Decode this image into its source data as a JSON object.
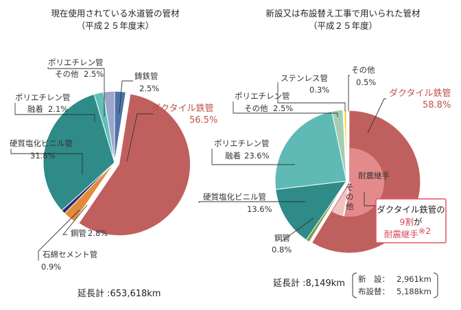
{
  "chart_data": [
    {
      "type": "pie",
      "title": "現在使用されている水道管の管材",
      "subtitle": "（平成２５年度末）",
      "total_label": "延長計 :653,618km",
      "slices": [
        {
          "name_lines": [
            "鋳鉄管"
          ],
          "value": 2.5,
          "value_label": "2.5%",
          "color": "#4f73a8"
        },
        {
          "name_lines": [
            "ダクタイル鉄管"
          ],
          "value": 56.5,
          "value_label": "56.5%",
          "color": "#c0605e",
          "highlight": true
        },
        {
          "name_lines": [
            "鋼管"
          ],
          "value": 2.8,
          "value_label": "2.8%",
          "color": "#e48a3c"
        },
        {
          "name_lines": [
            "石綿セメント管"
          ],
          "value": 0.9,
          "value_label": "0.9%",
          "color": "#2d2d6a"
        },
        {
          "name_lines": [
            "硬質塩化ビニル管"
          ],
          "value": 31.8,
          "value_label": "31.8%",
          "color": "#2e8b88"
        },
        {
          "name_lines": [
            "ポリエチレン管",
            "融着"
          ],
          "value": 2.1,
          "value_label": "2.1%",
          "color": "#5fc0b8"
        },
        {
          "name_lines": [
            "ポリエチレン管",
            "その他"
          ],
          "value": 2.5,
          "value_label": "2.5%",
          "color": "#9aa6cc"
        }
      ]
    },
    {
      "type": "pie",
      "title": "新設又は布設替え工事で用いられた管材",
      "subtitle": "（平成２５年度）",
      "total_label": "延長計 :8,149km",
      "breakdown": [
        {
          "label": "新　設：",
          "value": "2,961km"
        },
        {
          "label": "布設替：",
          "value": "5,188km"
        }
      ],
      "inner_labels": {
        "quake": "耐震継手",
        "other": "その他"
      },
      "inner_quake_fraction": 0.9,
      "callout": {
        "line1": "ダクタイル鉄管の",
        "line2_num": "9割",
        "line2_rest": "が",
        "line3": "耐震継手",
        "line3_note": "※2"
      },
      "slices": [
        {
          "name_lines": [
            "ダクタイル鉄管"
          ],
          "value": 58.8,
          "value_label": "58.8%",
          "color": "#c0605e",
          "highlight": true
        },
        {
          "name_lines": [
            "鋼管"
          ],
          "value": 0.8,
          "value_label": "0.8%",
          "color": "#7a9a4a"
        },
        {
          "name_lines": [
            "硬質塩化ビニル管"
          ],
          "value": 13.6,
          "value_label": "13.6%",
          "color": "#2e8b88"
        },
        {
          "name_lines": [
            "ポリエチレン管",
            "融着"
          ],
          "value": 23.6,
          "value_label": "23.6%",
          "color": "#5fbab6"
        },
        {
          "name_lines": [
            "ポリエチレン管",
            "その他"
          ],
          "value": 2.5,
          "value_label": "2.5%",
          "color": "#a3cdb4"
        },
        {
          "name_lines": [
            "ステンレス管"
          ],
          "value": 0.3,
          "value_label": "0.3%",
          "color": "#e9e9e9"
        },
        {
          "name_lines": [
            "その他"
          ],
          "value": 0.5,
          "value_label": "0.5%",
          "color": "#f2d22e"
        }
      ]
    }
  ]
}
